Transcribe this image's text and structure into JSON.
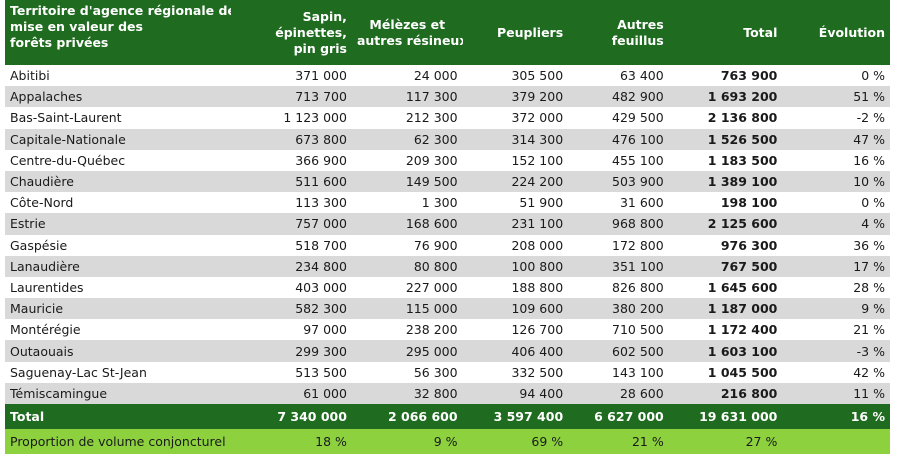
{
  "table": {
    "header": [
      [
        "Territoire d'agence régionale de",
        "mise en valeur des",
        "forêts privées"
      ],
      [
        "Sapin,",
        "épinettes,",
        "pin gris"
      ],
      [
        "Mélèzes et",
        "autres résineux"
      ],
      [
        "Peupliers"
      ],
      [
        "Autres",
        "feuillus"
      ],
      [
        "Total"
      ],
      [
        "Évolution"
      ]
    ],
    "rows": [
      [
        "Abitibi",
        "371 000",
        "24 000",
        "305 500",
        "63 400",
        "763 900",
        "0 %"
      ],
      [
        "Appalaches",
        "713 700",
        "117 300",
        "379 200",
        "482 900",
        "1 693 200",
        "51 %"
      ],
      [
        "Bas-Saint-Laurent",
        "1 123 000",
        "212 300",
        "372 000",
        "429 500",
        "2 136 800",
        "-2 %"
      ],
      [
        "Capitale-Nationale",
        "673 800",
        "62 300",
        "314 300",
        "476 100",
        "1 526 500",
        "47 %"
      ],
      [
        "Centre-du-Québec",
        "366 900",
        "209 300",
        "152 100",
        "455 100",
        "1 183 500",
        "16 %"
      ],
      [
        "Chaudière",
        "511 600",
        "149 500",
        "224 200",
        "503 900",
        "1 389 100",
        "10 %"
      ],
      [
        "Côte-Nord",
        "113 300",
        "1 300",
        "51 900",
        "31 600",
        "198 100",
        "0 %"
      ],
      [
        "Estrie",
        "757 000",
        "168 600",
        "231 100",
        "968 800",
        "2 125 600",
        "4 %"
      ],
      [
        "Gaspésie",
        "518 700",
        "76 900",
        "208 000",
        "172 800",
        "976 300",
        "36 %"
      ],
      [
        "Lanaudière",
        "234 800",
        "80 800",
        "100 800",
        "351 100",
        "767 500",
        "17 %"
      ],
      [
        "Laurentides",
        "403 000",
        "227 000",
        "188 800",
        "826 800",
        "1 645 600",
        "28 %"
      ],
      [
        "Mauricie",
        "582 300",
        "115 000",
        "109 600",
        "380 200",
        "1 187 000",
        "9 %"
      ],
      [
        "Montérégie",
        "97 000",
        "238 200",
        "126 700",
        "710 500",
        "1 172 400",
        "21 %"
      ],
      [
        "Outaouais",
        "299 300",
        "295 000",
        "406 400",
        "602 500",
        "1 603 100",
        "-3 %"
      ],
      [
        "Saguenay-Lac St-Jean",
        "513 500",
        "56 300",
        "332 500",
        "143 100",
        "1 045 500",
        "42 %"
      ],
      [
        "Témiscamingue",
        "61 000",
        "32 800",
        "94 400",
        "28 600",
        "216 800",
        "11 %"
      ]
    ],
    "total": [
      "Total",
      "7 340 000",
      "2 066 600",
      "3 597 400",
      "6 627 000",
      "19 631 000",
      "16 %"
    ],
    "proportion": [
      "Proportion de volume conjoncturel",
      "18 %",
      "9 %",
      "69 %",
      "21 %",
      "27 %"
    ]
  }
}
